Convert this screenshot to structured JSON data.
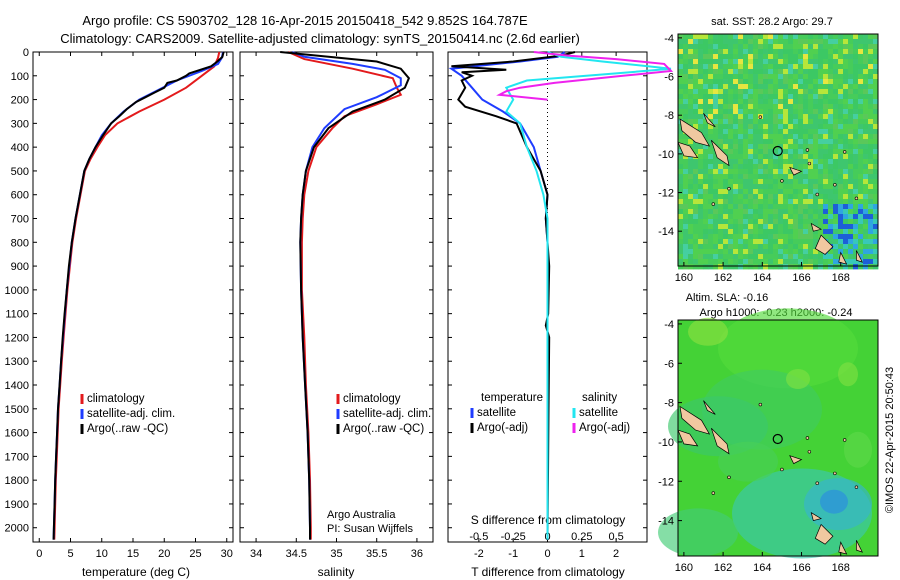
{
  "header": {
    "line1": "Argo profile: CS 5903702_128 16-Apr-2015 20150418_542 9.852S 164.787E",
    "line2": "Climatology: CARS2009. Satellite-adjusted climatology: synTS_20150414.nc (2.6d earlier)"
  },
  "side_label": "©IMOS 22-Apr-2015 20:50:43",
  "colors": {
    "climatology": "#e31a1c",
    "satellite": "#1f3cff",
    "argo": "#000000",
    "sat_salinity": "#22e6f0",
    "argo_salinity": "#ee22ee",
    "land": "#f0c8a0"
  },
  "chart_data": [
    {
      "id": "temperature",
      "type": "line",
      "xlabel": "temperature (deg C)",
      "xticks": [
        "0",
        "5",
        "10",
        "15",
        "20",
        "25",
        "30"
      ],
      "xlim": [
        -1,
        31
      ],
      "ylim": [
        0,
        2060
      ],
      "yticks": [
        "0",
        "100",
        "200",
        "300",
        "400",
        "500",
        "600",
        "700",
        "800",
        "900",
        "1000",
        "1100",
        "1200",
        "1300",
        "1400",
        "1500",
        "1600",
        "1700",
        "1800",
        "1900",
        "2000"
      ],
      "legend": [
        "climatology",
        "satellite-adj. clim.",
        "Argo(..raw -QC)"
      ],
      "series": [
        {
          "name": "climatology",
          "color": "#e31a1c",
          "points": [
            [
              28.8,
              0
            ],
            [
              28.6,
              25
            ],
            [
              28,
              60
            ],
            [
              26,
              100
            ],
            [
              23.5,
              150
            ],
            [
              20,
              200
            ],
            [
              16,
              250
            ],
            [
              12.5,
              300
            ],
            [
              10.5,
              350
            ],
            [
              9.3,
              400
            ],
            [
              8.2,
              450
            ],
            [
              7.3,
              500
            ],
            [
              6.6,
              600
            ],
            [
              5.9,
              700
            ],
            [
              5.3,
              800
            ],
            [
              4.9,
              900
            ],
            [
              4.5,
              1000
            ],
            [
              4.2,
              1100
            ],
            [
              3.9,
              1200
            ],
            [
              3.6,
              1300
            ],
            [
              3.35,
              1400
            ],
            [
              3.1,
              1500
            ],
            [
              2.95,
              1600
            ],
            [
              2.8,
              1700
            ],
            [
              2.65,
              1800
            ],
            [
              2.55,
              1900
            ],
            [
              2.45,
              2000
            ],
            [
              2.4,
              2050
            ]
          ]
        },
        {
          "name": "satellite-adj. clim.",
          "color": "#1f3cff",
          "points": [
            [
              29.4,
              0
            ],
            [
              29.2,
              25
            ],
            [
              28.6,
              50
            ],
            [
              26,
              80
            ],
            [
              22,
              120
            ],
            [
              19,
              160
            ],
            [
              16,
              200
            ],
            [
              13.5,
              250
            ],
            [
              11.5,
              300
            ],
            [
              10,
              350
            ],
            [
              9,
              400
            ],
            [
              8,
              450
            ],
            [
              7.2,
              500
            ],
            [
              6.5,
              600
            ],
            [
              5.8,
              700
            ],
            [
              5.2,
              800
            ],
            [
              4.8,
              900
            ],
            [
              4.4,
              1000
            ],
            [
              4.1,
              1100
            ],
            [
              3.8,
              1200
            ],
            [
              3.5,
              1300
            ],
            [
              3.25,
              1400
            ],
            [
              3,
              1500
            ],
            [
              2.85,
              1600
            ],
            [
              2.7,
              1700
            ],
            [
              2.55,
              1800
            ],
            [
              2.45,
              1900
            ],
            [
              2.35,
              2000
            ],
            [
              2.3,
              2050
            ]
          ]
        },
        {
          "name": "Argo(..raw -QC)",
          "color": "#000000",
          "points": [
            [
              29.5,
              0
            ],
            [
              29.3,
              20
            ],
            [
              28.5,
              40
            ],
            [
              27.5,
              60
            ],
            [
              24,
              90
            ],
            [
              23.5,
              100
            ],
            [
              22,
              120
            ],
            [
              20.5,
              130
            ],
            [
              20,
              150
            ],
            [
              18.5,
              170
            ],
            [
              17,
              190
            ],
            [
              15.5,
              210
            ],
            [
              14,
              240
            ],
            [
              12.8,
              270
            ],
            [
              11.5,
              300
            ],
            [
              10.2,
              350
            ],
            [
              9,
              400
            ],
            [
              8,
              450
            ],
            [
              7.2,
              500
            ],
            [
              6.5,
              600
            ],
            [
              5.8,
              700
            ],
            [
              5.2,
              800
            ],
            [
              4.75,
              900
            ],
            [
              4.4,
              1000
            ],
            [
              4.05,
              1100
            ],
            [
              3.75,
              1200
            ],
            [
              3.5,
              1300
            ],
            [
              3.25,
              1400
            ],
            [
              3.0,
              1500
            ],
            [
              2.85,
              1600
            ],
            [
              2.7,
              1700
            ],
            [
              2.55,
              1800
            ],
            [
              2.45,
              1900
            ],
            [
              2.35,
              2000
            ],
            [
              2.3,
              2050
            ]
          ]
        }
      ]
    },
    {
      "id": "salinity",
      "type": "line",
      "xlabel": "salinity",
      "xticks": [
        "34",
        "34.5",
        "35",
        "35.5",
        "36"
      ],
      "xlim": [
        33.8,
        36.2
      ],
      "ylim": [
        0,
        2060
      ],
      "legend": [
        "climatology",
        "satellite-adj. clim.",
        "Argo(..raw -QC)"
      ],
      "annotation": [
        "Argo Australia",
        "PI: Susan Wijffels"
      ],
      "series": [
        {
          "name": "climatology",
          "color": "#e31a1c",
          "points": [
            [
              34.4,
              0
            ],
            [
              34.6,
              30
            ],
            [
              35.2,
              70
            ],
            [
              35.7,
              110
            ],
            [
              35.75,
              150
            ],
            [
              35.8,
              180
            ],
            [
              35.5,
              220
            ],
            [
              35.1,
              270
            ],
            [
              34.95,
              320
            ],
            [
              34.75,
              400
            ],
            [
              34.65,
              500
            ],
            [
              34.6,
              600
            ],
            [
              34.58,
              700
            ],
            [
              34.57,
              800
            ],
            [
              34.57,
              1000
            ],
            [
              34.6,
              1200
            ],
            [
              34.62,
              1400
            ],
            [
              34.65,
              1600
            ],
            [
              34.67,
              1800
            ],
            [
              34.68,
              2000
            ],
            [
              34.68,
              2050
            ]
          ]
        },
        {
          "name": "satellite-adj. clim.",
          "color": "#1f3cff",
          "points": [
            [
              34.45,
              0
            ],
            [
              34.6,
              20
            ],
            [
              35.2,
              50
            ],
            [
              35.6,
              75
            ],
            [
              35.8,
              110
            ],
            [
              35.8,
              140
            ],
            [
              35.5,
              190
            ],
            [
              35.1,
              240
            ],
            [
              34.85,
              320
            ],
            [
              34.7,
              400
            ],
            [
              34.62,
              500
            ],
            [
              34.58,
              600
            ],
            [
              34.56,
              700
            ],
            [
              34.55,
              800
            ],
            [
              34.56,
              1000
            ],
            [
              34.58,
              1200
            ],
            [
              34.61,
              1400
            ],
            [
              34.64,
              1600
            ],
            [
              34.66,
              1800
            ],
            [
              34.67,
              2000
            ],
            [
              34.67,
              2050
            ]
          ]
        },
        {
          "name": "Argo(..raw -QC)",
          "color": "#000000",
          "points": [
            [
              34.3,
              0
            ],
            [
              34.9,
              20
            ],
            [
              35.5,
              40
            ],
            [
              35.8,
              70
            ],
            [
              35.9,
              110
            ],
            [
              35.85,
              150
            ],
            [
              35.6,
              200
            ],
            [
              35.2,
              250
            ],
            [
              34.9,
              320
            ],
            [
              34.72,
              400
            ],
            [
              34.62,
              500
            ],
            [
              34.58,
              600
            ],
            [
              34.56,
              700
            ],
            [
              34.55,
              800
            ],
            [
              34.56,
              1000
            ],
            [
              34.58,
              1200
            ],
            [
              34.61,
              1400
            ],
            [
              34.64,
              1600
            ],
            [
              34.66,
              1800
            ],
            [
              34.67,
              2000
            ],
            [
              34.67,
              2050
            ]
          ]
        }
      ]
    },
    {
      "id": "difference",
      "type": "line",
      "xlabel_bottom": "T difference from climatology",
      "xlabel_top": "S difference from climatology",
      "xticks_T": [
        "-2",
        "-1",
        "0",
        "1",
        "2"
      ],
      "xticks_S": [
        "-0.5",
        "-0.25",
        "0",
        "0.25",
        "0.5"
      ],
      "xlim_T": [
        -2.9,
        2.9
      ],
      "ylim": [
        0,
        2060
      ],
      "legend_temperature": {
        "title": "temperature",
        "items": [
          "satellite",
          "Argo(-adj)"
        ]
      },
      "legend_salinity": {
        "title": "salinity",
        "items": [
          "satellite",
          "Argo(-adj)"
        ]
      },
      "series": [
        {
          "name": "temperature satellite",
          "color": "#1f3cff",
          "points": [
            [
              0.5,
              0
            ],
            [
              0.3,
              20
            ],
            [
              -0.8,
              40
            ],
            [
              -2.8,
              70
            ],
            [
              -2.5,
              100
            ],
            [
              -2.2,
              150
            ],
            [
              -1.9,
              200
            ],
            [
              -1.3,
              250
            ],
            [
              -0.8,
              300
            ],
            [
              -0.4,
              400
            ],
            [
              -0.2,
              500
            ],
            [
              0,
              600
            ],
            [
              -0.05,
              700
            ],
            [
              0,
              800
            ],
            [
              0,
              1000
            ],
            [
              0,
              1500
            ],
            [
              0,
              2050
            ]
          ]
        },
        {
          "name": "temperature Argo(-adj)",
          "color": "#000000",
          "points": [
            [
              0.8,
              0
            ],
            [
              0.4,
              15
            ],
            [
              -1,
              40
            ],
            [
              -2.8,
              60
            ],
            [
              -1.2,
              75
            ],
            [
              -2.5,
              85
            ],
            [
              -2.2,
              100
            ],
            [
              -2.5,
              120
            ],
            [
              -2.4,
              150
            ],
            [
              -2.6,
              200
            ],
            [
              -2.4,
              230
            ],
            [
              -1.5,
              270
            ],
            [
              -0.9,
              300
            ],
            [
              -0.6,
              400
            ],
            [
              -0.2,
              500
            ],
            [
              0,
              600
            ],
            [
              -0.05,
              700
            ],
            [
              0.05,
              900
            ],
            [
              0.02,
              1100
            ],
            [
              -0.05,
              1150
            ],
            [
              0.05,
              1200
            ],
            [
              0.03,
              1500
            ],
            [
              0,
              2050
            ]
          ]
        },
        {
          "name": "salinity satellite",
          "color": "#22e6f0",
          "points": [
            [
              0,
              0
            ],
            [
              0.1,
              20
            ],
            [
              0.4,
              40
            ],
            [
              0.9,
              70
            ],
            [
              0.5,
              90
            ],
            [
              -0.15,
              120
            ],
            [
              -0.3,
              150
            ],
            [
              -0.25,
              200
            ],
            [
              -0.3,
              250
            ],
            [
              -0.2,
              300
            ],
            [
              -0.15,
              400
            ],
            [
              -0.08,
              500
            ],
            [
              -0.03,
              600
            ],
            [
              0,
              700
            ],
            [
              0,
              800
            ],
            [
              0,
              2050
            ]
          ]
        },
        {
          "name": "salinity Argo(-adj)",
          "color": "#ee22ee",
          "points": [
            [
              -0.1,
              0
            ],
            [
              0.15,
              15
            ],
            [
              0.5,
              30
            ],
            [
              0.85,
              50
            ],
            [
              0.9,
              80
            ],
            [
              0.55,
              100
            ],
            [
              0.05,
              130
            ],
            [
              -0.2,
              150
            ],
            [
              -0.3,
              165
            ],
            [
              -0.35,
              180
            ],
            [
              0,
              200
            ]
          ]
        }
      ]
    },
    {
      "id": "sst_map",
      "type": "heatmap",
      "title": "sat. SST: 28.2 Argo: 29.7",
      "xticks": [
        "160",
        "162",
        "164",
        "166",
        "168"
      ],
      "yticks": [
        "-4",
        "-6",
        "-8",
        "-10",
        "-12",
        "-14"
      ],
      "xlim": [
        159.7,
        169.9
      ],
      "ylim": [
        -15.8,
        -3.8
      ],
      "float_position": [
        164.787,
        -9.852
      ]
    },
    {
      "id": "sla_map",
      "type": "heatmap",
      "title": "Altim. SLA: -0.16",
      "subtitle": "Argo h1000: -0.23 h2000: -0.24",
      "xticks": [
        "160",
        "162",
        "164",
        "166",
        "168"
      ],
      "yticks": [
        "-4",
        "-6",
        "-8",
        "-10",
        "-12",
        "-14"
      ],
      "xlim": [
        159.7,
        169.9
      ],
      "ylim": [
        -15.8,
        -3.8
      ],
      "float_position": [
        164.787,
        -9.852
      ]
    }
  ]
}
